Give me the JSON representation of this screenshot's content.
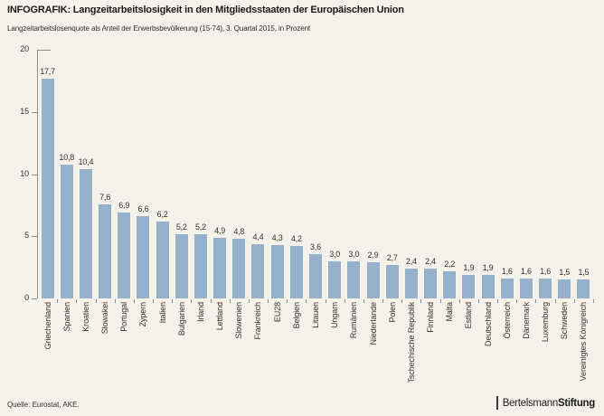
{
  "header": {
    "title": "INFOGRAFIK: Langzeitarbeitslosigkeit in den Mitgliedsstaaten der Europäischen Union",
    "subtitle": "Langzeitarbeitslosenquote als Anteil der Erwerbsbevölkerung (15-74), 3. Quartal 2015, in Prozent"
  },
  "footer": {
    "source": "Quelle: Eurostat, AKE.",
    "logo_regular": "Bertelsmann",
    "logo_bold": "Stiftung"
  },
  "colors": {
    "background": "#f5f3e9",
    "bar": "#96b1cb",
    "axis": "#8e8e86",
    "text": "#32312d"
  },
  "chart_data": {
    "type": "bar",
    "title": "INFOGRAFIK: Langzeitarbeitslosigkeit in den Mitgliedsstaaten der Europäischen Union",
    "subtitle": "Langzeitarbeitslosenquote als Anteil der Erwerbsbevölkerung (15-74), 3. Quartal 2015, in Prozent",
    "categories": [
      "Griechenland",
      "Spanien",
      "Kroatien",
      "Slowakei",
      "Portugal",
      "Zypern",
      "Italien",
      "Bulgarien",
      "Irland",
      "Lettland",
      "Slowenien",
      "Frankreich",
      "EU28",
      "Belgien",
      "Litauen",
      "Ungarn",
      "Rumänien",
      "Niederlande",
      "Polen",
      "Tschechische Republik",
      "Finnland",
      "Malta",
      "Estland",
      "Deutschland",
      "Österreich",
      "Dänemark",
      "Luxemburg",
      "Schweden",
      "Vereinigtes Königreich"
    ],
    "values": [
      17.7,
      10.8,
      10.4,
      7.6,
      6.9,
      6.6,
      6.2,
      5.2,
      5.2,
      4.9,
      4.8,
      4.4,
      4.3,
      4.2,
      3.6,
      3.0,
      3.0,
      2.9,
      2.7,
      2.4,
      2.4,
      2.2,
      1.9,
      1.9,
      1.6,
      1.6,
      1.6,
      1.5,
      1.5
    ],
    "value_labels": [
      "17,7",
      "10,8",
      "10,4",
      "7,6",
      "6,9",
      "6,6",
      "6,2",
      "5,2",
      "5,2",
      "4,9",
      "4,8",
      "4,4",
      "4,3",
      "4,2",
      "3,6",
      "3,0",
      "3,0",
      "2,9",
      "2,7",
      "2,4",
      "2,4",
      "2,2",
      "1,9",
      "1,9",
      "1,6",
      "1,6",
      "1,6",
      "1,5",
      "1,5"
    ],
    "xlabel": "",
    "ylabel": "",
    "ylim": [
      0,
      20
    ],
    "yticks": [
      0,
      5,
      10,
      15,
      20
    ],
    "grid": false,
    "legend": "none",
    "bar_orientation": "vertical",
    "unit": "Prozent"
  }
}
